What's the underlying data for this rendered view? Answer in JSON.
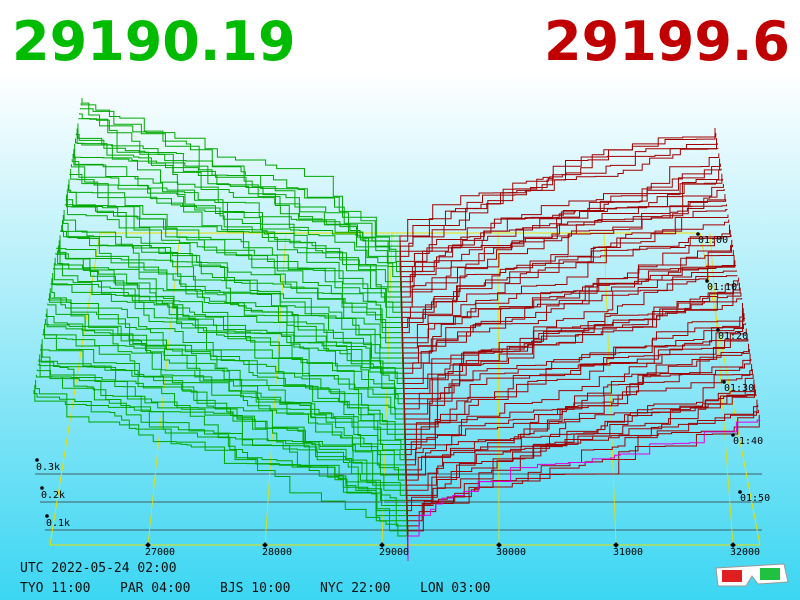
{
  "header": {
    "bid": "29190.19",
    "ask": "29199.6"
  },
  "price_axis": [
    "27000",
    "28000",
    "29000",
    "30000",
    "31000",
    "32000"
  ],
  "depth_axis": [
    "0.3k",
    "0.2k",
    "0.1k"
  ],
  "time_axis": [
    "01:00",
    "01:10",
    "01:20",
    "01:30",
    "01:40",
    "01:50"
  ],
  "footer": {
    "utc": "UTC 2022-05-24 02:00",
    "clocks": [
      "TYO 11:00",
      "PAR 04:00",
      "BJS 10:00",
      "NYC 22:00",
      "LON 03:00"
    ]
  }
}
